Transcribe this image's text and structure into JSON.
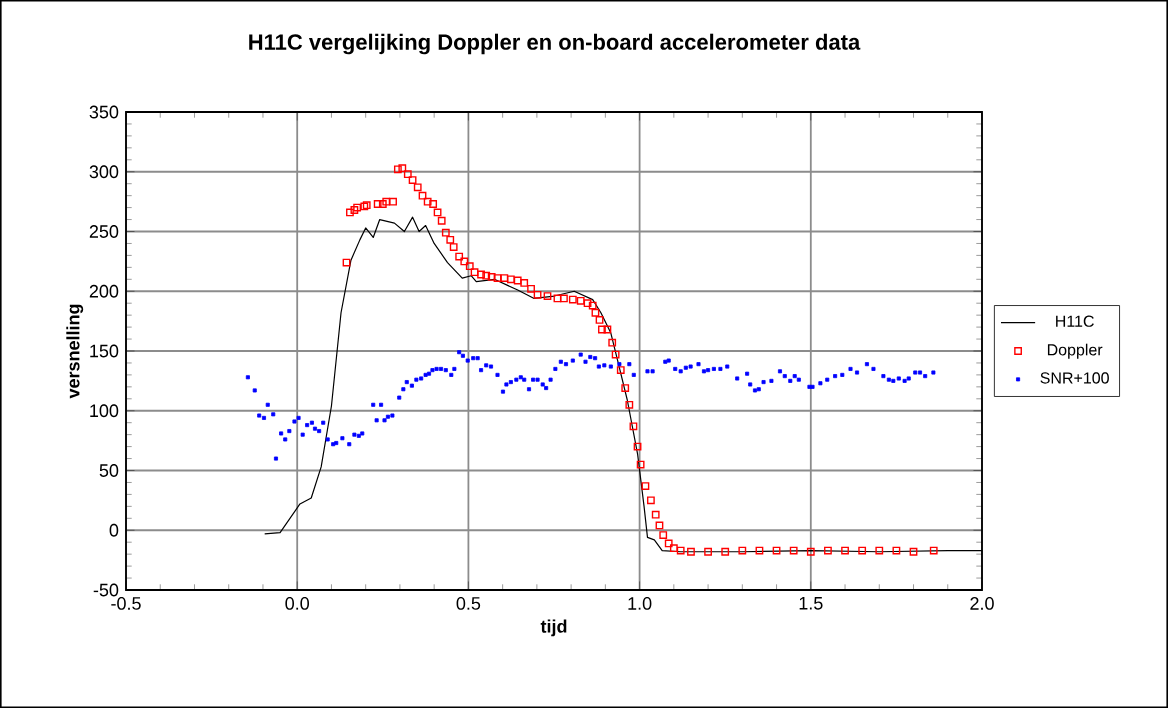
{
  "chart_data": {
    "type": "line",
    "title": "H11C vergelijking Doppler en on-board accelerometer data",
    "xlabel": "tijd",
    "ylabel": "versnelling",
    "xlim": [
      -0.5,
      2.0
    ],
    "xticks": [
      -0.5,
      {
        "value": 0,
        "label": "0.0"
      },
      0.5,
      {
        "value": 1,
        "label": "1.0"
      },
      1.5,
      {
        "value": 2,
        "label": "2.0"
      }
    ],
    "ylim": [
      -50,
      350
    ],
    "yticks": [
      -50,
      0,
      50,
      100,
      150,
      200,
      250,
      300,
      350
    ],
    "grid": true,
    "legend": "right",
    "series": [
      {
        "name": "H11C",
        "marker": "none",
        "line_style": "solid",
        "color": "#000000",
        "x": [
          -0.095,
          -0.05,
          0.008,
          0.041,
          0.07,
          0.1,
          0.128,
          0.157,
          0.183,
          0.2,
          0.222,
          0.241,
          0.284,
          0.313,
          0.337,
          0.356,
          0.375,
          0.4,
          0.439,
          0.482,
          0.508,
          0.523,
          0.576,
          0.644,
          0.692,
          0.751,
          0.809,
          0.863,
          0.887,
          0.916,
          0.935,
          0.964,
          0.994,
          1.013,
          1.023,
          1.043,
          1.066,
          1.12,
          1.3,
          1.5,
          1.7,
          1.9,
          2.0
        ],
        "values": [
          -3,
          -2,
          22,
          27,
          53,
          104,
          182,
          226,
          243,
          253,
          245,
          260,
          257,
          250,
          262,
          250,
          255,
          240,
          224,
          211,
          213,
          208,
          210,
          201,
          194,
          196,
          200,
          193,
          182,
          165,
          143,
          109,
          64,
          20,
          -6,
          -8,
          -17,
          -18,
          -18,
          -17,
          -18,
          -17,
          -17
        ]
      },
      {
        "name": "Doppler",
        "type": "scatter",
        "marker": "square",
        "color": "#ff0000",
        "x": [
          0.144,
          0.154,
          0.167,
          0.175,
          0.196,
          0.203,
          0.235,
          0.25,
          0.26,
          0.28,
          0.294,
          0.307,
          0.323,
          0.337,
          0.352,
          0.366,
          0.381,
          0.397,
          0.41,
          0.422,
          0.434,
          0.447,
          0.457,
          0.473,
          0.488,
          0.504,
          0.518,
          0.537,
          0.552,
          0.568,
          0.585,
          0.605,
          0.624,
          0.644,
          0.663,
          0.683,
          0.702,
          0.731,
          0.76,
          0.779,
          0.805,
          0.828,
          0.848,
          0.863,
          0.871,
          0.883,
          0.89,
          0.906,
          0.92,
          0.93,
          0.945,
          0.958,
          0.97,
          0.982,
          0.994,
          1.003,
          1.017,
          1.033,
          1.047,
          1.058,
          1.069,
          1.085,
          1.1,
          1.12,
          1.15,
          1.2,
          1.25,
          1.3,
          1.35,
          1.4,
          1.45,
          1.5,
          1.55,
          1.6,
          1.65,
          1.7,
          1.75,
          1.8,
          1.859
        ],
        "values": [
          224,
          266,
          268,
          270,
          271,
          272,
          273,
          273,
          275,
          275,
          302,
          303,
          298,
          293,
          287,
          280,
          275,
          273,
          266,
          259,
          249,
          243,
          237,
          229,
          225,
          221,
          216,
          214,
          213,
          212,
          211,
          211,
          210,
          209,
          207,
          202,
          197,
          196,
          194,
          194,
          193,
          192,
          190,
          188,
          182,
          176,
          168,
          168,
          157,
          147,
          134,
          119,
          105,
          87,
          70,
          55,
          37,
          25,
          13,
          4,
          -4,
          -11,
          -15,
          -17,
          -18,
          -18,
          -18,
          -17,
          -17,
          -17,
          -17,
          -18,
          -17,
          -17,
          -17,
          -17,
          -17,
          -18,
          -17
        ]
      },
      {
        "name": "SNR+100",
        "type": "scatter",
        "marker": "square",
        "color": "#0000ff",
        "x": [
          -0.144,
          -0.124,
          -0.111,
          -0.097,
          -0.086,
          -0.07,
          -0.062,
          -0.047,
          -0.035,
          -0.023,
          -0.008,
          0.004,
          0.016,
          0.029,
          0.043,
          0.052,
          0.064,
          0.076,
          0.089,
          0.105,
          0.114,
          0.132,
          0.152,
          0.167,
          0.18,
          0.19,
          0.222,
          0.232,
          0.245,
          0.255,
          0.265,
          0.278,
          0.298,
          0.31,
          0.32,
          0.335,
          0.348,
          0.362,
          0.375,
          0.385,
          0.395,
          0.407,
          0.42,
          0.434,
          0.45,
          0.459,
          0.473,
          0.484,
          0.498,
          0.514,
          0.527,
          0.537,
          0.552,
          0.566,
          0.585,
          0.601,
          0.611,
          0.624,
          0.64,
          0.653,
          0.663,
          0.677,
          0.689,
          0.702,
          0.717,
          0.727,
          0.74,
          0.754,
          0.77,
          0.785,
          0.805,
          0.828,
          0.842,
          0.856,
          0.87,
          0.881,
          0.897,
          0.916,
          0.941,
          0.97,
          0.983,
          1.023,
          1.038,
          1.075,
          1.085,
          1.104,
          1.12,
          1.135,
          1.149,
          1.172,
          1.188,
          1.2,
          1.217,
          1.236,
          1.256,
          1.285,
          1.314,
          1.323,
          1.337,
          1.348,
          1.362,
          1.385,
          1.41,
          1.424,
          1.44,
          1.453,
          1.465,
          1.496,
          1.505,
          1.528,
          1.548,
          1.571,
          1.592,
          1.616,
          1.635,
          1.664,
          1.683,
          1.712,
          1.728,
          1.741,
          1.757,
          1.774,
          1.786,
          1.805,
          1.819,
          1.834,
          1.858
        ],
        "values": [
          128,
          117,
          96,
          94,
          105,
          97,
          60,
          81,
          76,
          83,
          91,
          94,
          80,
          88,
          90,
          85,
          83,
          90,
          76,
          72,
          73,
          77,
          72,
          80,
          79,
          81,
          105,
          92,
          105,
          92,
          95,
          96,
          111,
          118,
          124,
          121,
          126,
          127,
          130,
          131,
          134,
          135,
          135,
          134,
          130,
          135,
          149,
          146,
          142,
          144,
          144,
          134,
          138,
          137,
          130,
          116,
          122,
          124,
          126,
          128,
          126,
          118,
          126,
          126,
          122,
          119,
          126,
          135,
          141,
          139,
          142,
          147,
          141,
          145,
          144,
          137,
          138,
          137,
          139,
          139,
          130,
          133,
          133,
          141,
          142,
          135,
          133,
          136,
          137,
          139,
          133,
          134,
          135,
          135,
          137,
          127,
          131,
          122,
          117,
          118,
          124,
          125,
          133,
          129,
          125,
          129,
          126,
          120,
          120,
          123,
          126,
          129,
          130,
          135,
          132,
          139,
          135,
          129,
          126,
          125,
          127,
          125,
          127,
          132,
          132,
          129,
          132
        ]
      }
    ]
  }
}
